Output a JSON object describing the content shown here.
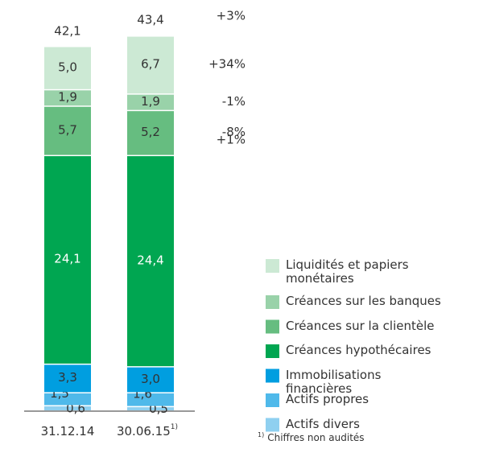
{
  "chart_data": {
    "type": "stacked_bar",
    "categories": [
      "31.12.14",
      "30.06.15"
    ],
    "category_marks": [
      null,
      "1)"
    ],
    "series": [
      {
        "name": "Actifs divers",
        "color": "#8fd0f0",
        "values": [
          0.6,
          0.5
        ],
        "value_labels": [
          "0,6",
          "0,5"
        ]
      },
      {
        "name": "Actifs propres",
        "color": "#4fb9ea",
        "values": [
          1.5,
          1.6
        ],
        "value_labels": [
          "1,5",
          "1,6"
        ]
      },
      {
        "name": "Immobilisations financières",
        "color": "#009ee0",
        "values": [
          3.3,
          3.0
        ],
        "value_labels": [
          "3,3",
          "3,0"
        ]
      },
      {
        "name": "Créances hypothécaires",
        "color": "#00a651",
        "values": [
          24.1,
          24.4
        ],
        "value_labels": [
          "24,1",
          "24,4"
        ],
        "change": 1,
        "change_label": "+1%"
      },
      {
        "name": "Créances sur la clientèle",
        "color": "#66bd80",
        "values": [
          5.7,
          5.2
        ],
        "value_labels": [
          "5,7",
          "5,2"
        ],
        "change": -8,
        "change_label": "-8%"
      },
      {
        "name": "Créances sur les banques",
        "color": "#99d2a9",
        "values": [
          1.9,
          1.9
        ],
        "value_labels": [
          "1,9",
          "1,9"
        ],
        "change": -1,
        "change_label": "-1%"
      },
      {
        "name": "Liquidités et papiers monétaires",
        "color": "#cce9d4",
        "values": [
          5.0,
          6.7
        ],
        "value_labels": [
          "5,0",
          "6,7"
        ],
        "change": 34,
        "change_label": "+34%"
      }
    ],
    "totals": [
      42.1,
      43.4
    ],
    "total_labels": [
      "42,1",
      "43,4"
    ],
    "total_change": 3,
    "total_change_label": "+3%",
    "footnote": {
      "mark": "1)",
      "text": "Chiffres non audités"
    }
  }
}
